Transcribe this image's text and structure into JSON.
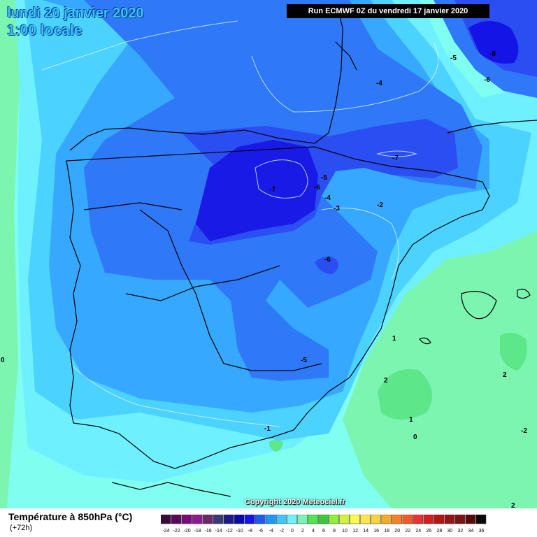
{
  "header": {
    "date": "lundi 20 janvier 2020",
    "time": "1:00 locale",
    "run": "Run ECMWF 0Z du vendredi 17 janvier 2020"
  },
  "footer": {
    "title": "Température à 850hPa (°C)",
    "subtitle": "(+72h)",
    "copyright": "Copyright 2020 Meteociel.fr"
  },
  "map_labels": [
    {
      "text": "-8"
    },
    {
      "text": "-5"
    },
    {
      "text": "-6"
    },
    {
      "text": "-4"
    },
    {
      "text": "-7"
    },
    {
      "text": "-5"
    },
    {
      "text": "-6"
    },
    {
      "text": "-4"
    },
    {
      "text": "-3"
    },
    {
      "text": "-2"
    },
    {
      "text": "-7"
    },
    {
      "text": "-6"
    },
    {
      "text": "1"
    },
    {
      "text": "2"
    },
    {
      "text": "-5"
    },
    {
      "text": "2"
    },
    {
      "text": "1"
    },
    {
      "text": "0"
    },
    {
      "text": "-1"
    },
    {
      "text": "-2"
    },
    {
      "text": "0"
    },
    {
      "text": "2"
    }
  ],
  "legend": {
    "values": [
      "-24",
      "-22",
      "-20",
      "-18",
      "-16",
      "-14",
      "-12",
      "-10",
      "-8",
      "-6",
      "-4",
      "-2",
      "0",
      "2",
      "4",
      "6",
      "8",
      "10",
      "12",
      "14",
      "16",
      "18",
      "20",
      "22",
      "24",
      "26",
      "28",
      "30",
      "32",
      "34",
      "36"
    ],
    "colors": [
      "#3a0a3a",
      "#5a0a5a",
      "#7a0a7a",
      "#8f1a8f",
      "#6a2a6a",
      "#3a3a7a",
      "#1a1a8a",
      "#0a0ab0",
      "#1414e6",
      "#1e5af0",
      "#1e96ff",
      "#3cc8ff",
      "#6ef0ff",
      "#78f5b4",
      "#50e650",
      "#3cc83c",
      "#8cf03c",
      "#d2f03c",
      "#fafa50",
      "#fae650",
      "#fad23c",
      "#f5aa28",
      "#f58228",
      "#f05a28",
      "#eb3232",
      "#d21e1e",
      "#b41414",
      "#961414",
      "#781414",
      "#5a0a0a",
      "#0a0a0a"
    ]
  },
  "colors": {
    "level_m7": "#1a1ae6",
    "level_m6": "#2a4ef2",
    "level_m5": "#2f78f7",
    "level_m4": "#36a8ff",
    "level_m2": "#4cd2ff",
    "level_m1": "#6ef0ff",
    "level_0": "#80fff0",
    "level_p1": "#7bf5b0",
    "level_p2": "#5ee68a"
  }
}
